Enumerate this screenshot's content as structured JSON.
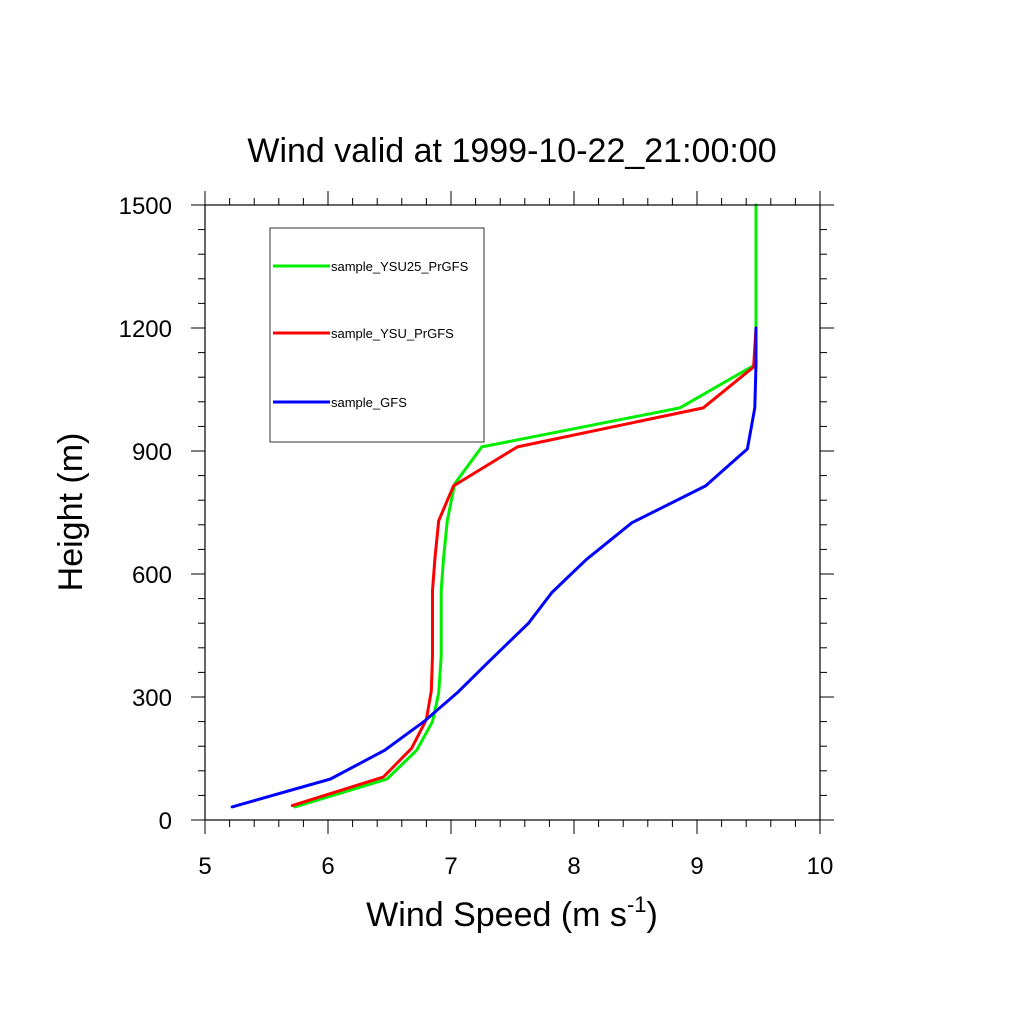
{
  "chart_data": {
    "type": "line",
    "title": "Wind valid at 1999-10-22_21:00:00",
    "xlabel": "Wind Speed (m s",
    "xlabel_sup": "-1",
    "xlabel_close": ")",
    "ylabel": "Height (m)",
    "xlim": [
      5,
      10
    ],
    "ylim": [
      0,
      1500
    ],
    "x_ticks": [
      5,
      6,
      7,
      8,
      9,
      10
    ],
    "y_ticks": [
      0,
      300,
      600,
      900,
      1200,
      1500
    ],
    "x_tick_labels": [
      "5",
      "6",
      "7",
      "8",
      "9",
      "10"
    ],
    "y_tick_labels": [
      "0",
      "300",
      "600",
      "900",
      "1200",
      "1500"
    ],
    "legend_position": "top-left",
    "grid": false,
    "series": [
      {
        "name": "sample_YSU25_PrGFS",
        "color": "#00ee00",
        "points": [
          [
            5.73,
            32
          ],
          [
            6.48,
            100
          ],
          [
            6.72,
            170
          ],
          [
            6.85,
            240
          ],
          [
            6.9,
            310
          ],
          [
            6.92,
            400
          ],
          [
            6.92,
            560
          ],
          [
            6.94,
            640
          ],
          [
            6.97,
            730
          ],
          [
            7.03,
            820
          ],
          [
            7.25,
            910
          ],
          [
            8.86,
            1005
          ],
          [
            9.47,
            1110
          ],
          [
            9.48,
            1200
          ],
          [
            9.48,
            1500
          ]
        ]
      },
      {
        "name": "sample_YSU_PrGFS",
        "color": "#ff0000",
        "points": [
          [
            5.71,
            35
          ],
          [
            6.45,
            105
          ],
          [
            6.68,
            175
          ],
          [
            6.8,
            245
          ],
          [
            6.84,
            315
          ],
          [
            6.85,
            400
          ],
          [
            6.85,
            560
          ],
          [
            6.87,
            640
          ],
          [
            6.9,
            730
          ],
          [
            7.02,
            815
          ],
          [
            7.54,
            910
          ],
          [
            9.05,
            1005
          ],
          [
            9.46,
            1105
          ],
          [
            9.48,
            1200
          ]
        ]
      },
      {
        "name": "sample_GFS",
        "color": "#0000ff",
        "points": [
          [
            5.22,
            32
          ],
          [
            6.02,
            100
          ],
          [
            6.46,
            170
          ],
          [
            6.78,
            240
          ],
          [
            7.05,
            310
          ],
          [
            7.32,
            390
          ],
          [
            7.63,
            480
          ],
          [
            7.82,
            555
          ],
          [
            8.1,
            635
          ],
          [
            8.47,
            725
          ],
          [
            9.07,
            815
          ],
          [
            9.41,
            905
          ],
          [
            9.47,
            1005
          ],
          [
            9.48,
            1110
          ],
          [
            9.48,
            1200
          ]
        ]
      }
    ]
  }
}
